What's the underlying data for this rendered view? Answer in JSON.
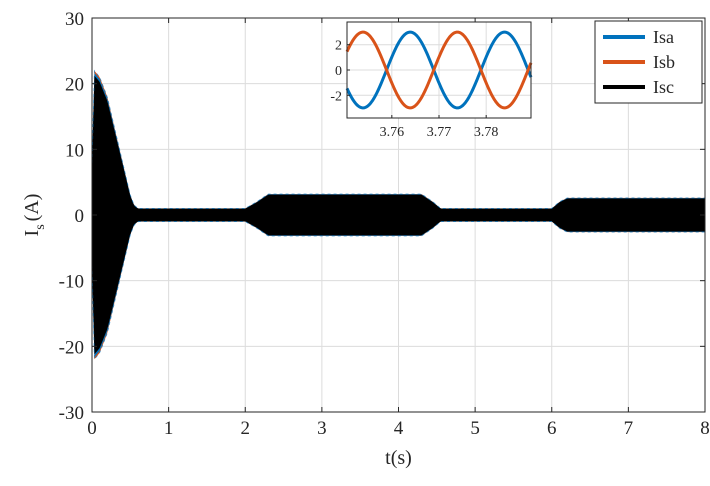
{
  "chart_data": [
    {
      "type": "line",
      "title": "",
      "xlabel": "t(s)",
      "ylabel_main": "I",
      "ylabel_sub": "s",
      "ylabel_unit": "(A)",
      "xlim": [
        0,
        8
      ],
      "ylim": [
        -30,
        30
      ],
      "xticks": [
        0,
        1,
        2,
        3,
        4,
        5,
        6,
        7,
        8
      ],
      "yticks": [
        -30,
        -20,
        -10,
        0,
        10,
        20,
        30
      ],
      "grid": true,
      "legend_position": "top-right",
      "series": [
        {
          "name": "Isa",
          "color": "#0072BD"
        },
        {
          "name": "Isb",
          "color": "#D95319"
        },
        {
          "name": "Isc",
          "color": "#000000"
        }
      ],
      "envelope": {
        "t": [
          0,
          0.03,
          0.1,
          0.2,
          0.3,
          0.4,
          0.5,
          0.55,
          0.6,
          2.0,
          2.15,
          2.3,
          4.3,
          4.45,
          4.55,
          6.0,
          6.1,
          6.2,
          8.0
        ],
        "amplitude": [
          7,
          22,
          21,
          18,
          13,
          8,
          3,
          1.5,
          1.0,
          1.0,
          2.0,
          3.2,
          3.2,
          2.0,
          1.0,
          1.0,
          2.0,
          2.6,
          2.6
        ]
      }
    },
    {
      "type": "line",
      "title": "",
      "inset": true,
      "xlim": [
        3.7505,
        3.7895
      ],
      "ylim": [
        -3.8,
        3.8
      ],
      "xticks": [
        3.76,
        3.77,
        3.78
      ],
      "yticks": [
        -2,
        0,
        2
      ],
      "grid": true,
      "frequency_hz": 50,
      "series": [
        {
          "name": "Isa",
          "color": "#0072BD",
          "amplitude": 3.0,
          "phase_deg": 20
        },
        {
          "name": "Isb",
          "color": "#D95319",
          "amplitude": 3.0,
          "phase_deg": 200
        }
      ]
    }
  ]
}
